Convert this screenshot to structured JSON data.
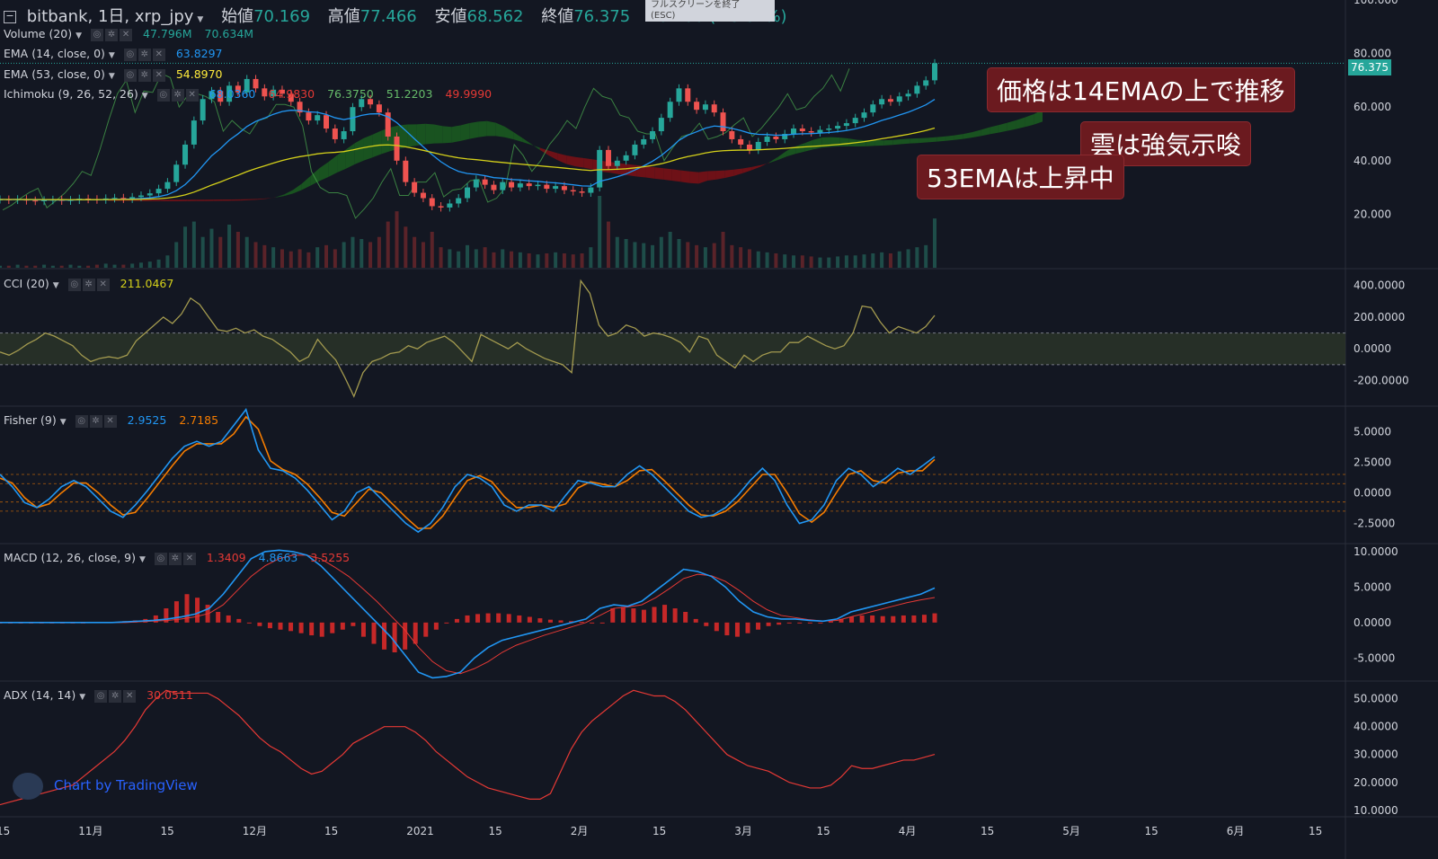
{
  "header": {
    "collapse_icon": "minus-square-icon",
    "symbol": "bitbank, 1日, xrp_jpy",
    "open_label": "始値",
    "open_value": "70.169",
    "high_label": "高値",
    "high_value": "77.466",
    "low_label": "安値",
    "low_value": "68.562",
    "close_label": "終値",
    "close_value": "76.375",
    "change": "+6.206 (+8.84%)"
  },
  "tooltip": {
    "line1": "フルスクリーンを終了",
    "line2": "(ESC)"
  },
  "indicators": {
    "volume": {
      "name": "Volume (20)",
      "v1": "47.796M",
      "v2": "70.634M"
    },
    "ema14": {
      "name": "EMA (14, close, 0)",
      "v": "63.8297"
    },
    "ema53": {
      "name": "EMA (53, close, 0)",
      "v": "54.8970"
    },
    "ichimoku": {
      "name": "Ichimoku (9, 26, 52, 26)",
      "v1": "68.0360",
      "v2": "64.9830",
      "v3": "76.3750",
      "v4": "51.2203",
      "v5": "49.9990"
    },
    "cci": {
      "name": "CCI (20)",
      "v": "211.0467"
    },
    "fisher": {
      "name": "Fisher (9)",
      "v1": "2.9525",
      "v2": "2.7185"
    },
    "macd": {
      "name": "MACD (12, 26, close, 9)",
      "v1": "1.3409",
      "v2": "4.8663",
      "v3": "3.5255"
    },
    "adx": {
      "name": "ADX (14, 14)",
      "v": "30.0511"
    }
  },
  "annotations": {
    "a1": "価格は14EMAの上で推移",
    "a2": "雲は強気示唆",
    "a3": "53EMAは上昇中"
  },
  "price_badge": "76.375",
  "branding": "Chart by TradingView",
  "colors": {
    "bg": "#131722",
    "up": "#26a69a",
    "down": "#ef5350",
    "ema14": "#2196f3",
    "ema53": "#d4d01a",
    "cci": "#a39a4f",
    "fisher": "#2196f3",
    "trigger": "#f57c00",
    "macd": "#2196f3",
    "signal": "#e53935",
    "hist": "#c62828",
    "adx": "#e53935",
    "annot": "#6b1a1f"
  },
  "chart_data": [
    {
      "type": "candlestick",
      "pane": "price",
      "title": "bitbank, 1日, xrp_jpy",
      "y_ticks": [
        "20.000",
        "40.000",
        "60.000",
        "80.000",
        "100.000"
      ],
      "ylim": [
        0,
        100
      ],
      "x_ticks": [
        "15",
        "11月",
        "15",
        "12月",
        "15",
        "2021",
        "15",
        "2月",
        "15",
        "3月",
        "15",
        "4月",
        "15",
        "5月",
        "15",
        "6月",
        "15"
      ],
      "close_series": [
        25.5,
        25.3,
        25.6,
        25.1,
        24.9,
        25.2,
        25.4,
        25.0,
        25.3,
        25.8,
        25.6,
        25.4,
        25.9,
        26.1,
        25.7,
        26.4,
        27.0,
        27.8,
        29.5,
        32.0,
        38.5,
        46.0,
        55.0,
        63.0,
        66.0,
        62.0,
        68.0,
        65.5,
        70.5,
        67.0,
        64.0,
        66.5,
        65.0,
        62.0,
        58.0,
        55.0,
        57.0,
        52.0,
        48.0,
        51.0,
        60.0,
        63.0,
        61.0,
        58.0,
        49.0,
        40.0,
        32.0,
        28.0,
        26.0,
        23.0,
        22.5,
        24.0,
        26.0,
        30.0,
        33.0,
        31.0,
        29.0,
        32.0,
        30.0,
        31.5,
        30.5,
        31.0,
        29.5,
        30.5,
        29.0,
        28.5,
        28.0,
        30.0,
        44.0,
        38.0,
        40.0,
        42.0,
        46.0,
        48.0,
        51.0,
        56.0,
        62.0,
        67.0,
        62.0,
        59.0,
        61.0,
        58.0,
        51.0,
        48.0,
        46.0,
        44.0,
        47.0,
        49.0,
        48.0,
        50.0,
        52.0,
        51.0,
        50.5,
        51.5,
        52.0,
        53.0,
        54.0,
        56.0,
        58.0,
        61.0,
        63.0,
        62.0,
        64.0,
        65.0,
        68.0,
        70.0,
        76.4
      ],
      "last_price": 76.375,
      "ema14_last": 63.8297,
      "ema53_last": 54.897
    },
    {
      "type": "bar",
      "pane": "volume",
      "title": "Volume (20)",
      "values_M": [
        2,
        2,
        3,
        2,
        2,
        3,
        2,
        2,
        3,
        2,
        2,
        3,
        4,
        3,
        3,
        4,
        5,
        6,
        8,
        12,
        25,
        40,
        45,
        30,
        38,
        30,
        42,
        35,
        30,
        25,
        22,
        20,
        18,
        16,
        18,
        15,
        20,
        22,
        18,
        25,
        30,
        28,
        25,
        30,
        45,
        55,
        40,
        30,
        25,
        35,
        20,
        18,
        16,
        22,
        18,
        20,
        15,
        18,
        16,
        15,
        14,
        13,
        14,
        15,
        14,
        13,
        14,
        20,
        70,
        45,
        30,
        28,
        25,
        24,
        22,
        30,
        35,
        28,
        25,
        22,
        20,
        24,
        35,
        22,
        20,
        18,
        16,
        15,
        14,
        13,
        12,
        12,
        11,
        10,
        10,
        11,
        12,
        12,
        13,
        14,
        15,
        14,
        16,
        18,
        20,
        22,
        48
      ]
    },
    {
      "type": "line",
      "pane": "cci",
      "title": "CCI (20)",
      "y_ticks": [
        "-200.0000",
        "0.0000",
        "200.0000",
        "400.0000"
      ],
      "ylim": [
        -350,
        500
      ],
      "bands": [
        -100,
        100
      ],
      "values": [
        -20,
        -40,
        -10,
        30,
        60,
        100,
        80,
        50,
        20,
        -40,
        -80,
        -60,
        -50,
        -60,
        -40,
        50,
        100,
        150,
        200,
        160,
        220,
        320,
        280,
        200,
        120,
        110,
        130,
        100,
        120,
        80,
        60,
        20,
        -20,
        -80,
        -50,
        60,
        -10,
        -70,
        -180,
        -300,
        -150,
        -80,
        -60,
        -30,
        -20,
        20,
        0,
        40,
        60,
        80,
        40,
        -20,
        -80,
        90,
        60,
        30,
        0,
        40,
        0,
        -30,
        -60,
        -80,
        -100,
        -150,
        430,
        350,
        150,
        80,
        100,
        150,
        130,
        80,
        100,
        90,
        70,
        40,
        -20,
        80,
        60,
        -40,
        -80,
        -120,
        -40,
        -80,
        -40,
        -20,
        -20,
        40,
        40,
        80,
        50,
        20,
        0,
        20,
        100,
        270,
        260,
        170,
        100,
        140,
        120,
        100,
        140,
        211
      ]
    },
    {
      "type": "line",
      "pane": "fisher",
      "title": "Fisher (9)",
      "y_ticks": [
        "-2.5000",
        "0.0000",
        "2.5000",
        "5.0000"
      ],
      "ylim": [
        -4,
        7
      ],
      "levels": [
        -1.5,
        -0.75,
        0.75,
        1.5
      ],
      "series": [
        {
          "name": "Fisher",
          "values": [
            1.5,
            0.5,
            -0.8,
            -1.2,
            -0.5,
            0.5,
            1.0,
            0.5,
            -0.5,
            -1.5,
            -2.0,
            -1.0,
            0.2,
            1.5,
            2.8,
            3.8,
            4.2,
            3.8,
            4.2,
            5.5,
            6.8,
            3.5,
            2.0,
            1.8,
            1.2,
            0.2,
            -1.0,
            -2.2,
            -1.5,
            0,
            0.5,
            -0.5,
            -1.5,
            -2.5,
            -3.2,
            -2.5,
            -1.2,
            0.5,
            1.5,
            1.2,
            0.5,
            -1.0,
            -1.5,
            -1.0,
            -1.0,
            -1.5,
            -0.2,
            1.0,
            0.8,
            0.5,
            0.5,
            1.5,
            2.2,
            1.5,
            0.5,
            -0.5,
            -1.5,
            -2.0,
            -1.8,
            -1.2,
            -0.2,
            1.0,
            2.0,
            1.0,
            -1.0,
            -2.5,
            -2.2,
            -1.0,
            1.0,
            2.0,
            1.5,
            0.5,
            1.2,
            2.0,
            1.5,
            2.2,
            2.95
          ]
        },
        {
          "name": "Trigger",
          "values": [
            1.2,
            0.8,
            -0.4,
            -1.2,
            -0.9,
            0.0,
            0.8,
            0.8,
            0.0,
            -1.0,
            -1.8,
            -1.6,
            -0.4,
            0.9,
            2.2,
            3.4,
            4.0,
            4.0,
            4.0,
            4.8,
            6.2,
            5.2,
            2.6,
            1.9,
            1.5,
            0.7,
            -0.4,
            -1.6,
            -1.9,
            -0.8,
            0.3,
            0.0,
            -1.0,
            -2.0,
            -2.9,
            -2.9,
            -1.9,
            -0.4,
            1.0,
            1.4,
            0.9,
            -0.3,
            -1.2,
            -1.2,
            -1.0,
            -1.2,
            -0.9,
            0.4,
            0.9,
            0.7,
            0.5,
            1.0,
            1.8,
            1.9,
            1.0,
            0.0,
            -1.0,
            -1.8,
            -1.9,
            -1.5,
            -0.7,
            0.4,
            1.5,
            1.5,
            0.0,
            -1.7,
            -2.4,
            -1.6,
            0.0,
            1.5,
            1.8,
            1.0,
            0.8,
            1.6,
            1.8,
            1.8,
            2.72
          ]
        }
      ]
    },
    {
      "type": "line",
      "pane": "macd",
      "title": "MACD (12, 26, close, 9)",
      "y_ticks": [
        "-5.0000",
        "0.0000",
        "5.0000",
        "10.0000"
      ],
      "ylim": [
        -8,
        11
      ],
      "series": [
        {
          "name": "Histogram",
          "values": [
            0,
            0,
            0,
            0,
            0,
            0,
            0,
            0,
            0,
            0.1,
            0.1,
            0.1,
            0.2,
            0.3,
            0.5,
            1.0,
            2.0,
            3.0,
            4.0,
            3.5,
            2.5,
            1.5,
            1.0,
            0.5,
            0,
            -0.5,
            -0.8,
            -1.0,
            -1.2,
            -1.5,
            -1.8,
            -2.0,
            -1.5,
            -1.0,
            -0.5,
            -2.0,
            -3.0,
            -3.8,
            -4.2,
            -3.8,
            -3.0,
            -2.0,
            -1.0,
            0,
            0.5,
            1.0,
            1.2,
            1.3,
            1.3,
            1.2,
            1.0,
            0.8,
            0.6,
            0.4,
            0.3,
            0.2,
            0.1,
            0,
            0,
            2.0,
            2.2,
            2.0,
            1.8,
            2.2,
            2.5,
            2.0,
            1.5,
            0.5,
            -0.5,
            -1.2,
            -1.8,
            -2.0,
            -1.5,
            -1.0,
            -0.5,
            -0.3,
            -0.1,
            0,
            0,
            0,
            0.2,
            0.5,
            0.8,
            1.0,
            1.0,
            0.9,
            0.9,
            1.0,
            1.0,
            1.1,
            1.3
          ]
        },
        {
          "name": "MACD",
          "values": [
            0,
            0,
            0,
            0,
            0,
            0,
            0,
            0,
            0,
            0.1,
            0.2,
            0.3,
            0.5,
            0.8,
            1.2,
            2.0,
            4.0,
            6.5,
            9.0,
            10.0,
            10.2,
            10.0,
            9.5,
            8.0,
            6.0,
            4.0,
            2.0,
            0,
            -2.0,
            -4.5,
            -7.0,
            -7.8,
            -7.6,
            -7.0,
            -5.0,
            -3.5,
            -2.5,
            -2.0,
            -1.5,
            -1.0,
            -0.5,
            0.0,
            0.5,
            2.0,
            2.5,
            2.3,
            3.0,
            4.5,
            6.0,
            7.5,
            7.2,
            6.5,
            5.0,
            3.0,
            1.5,
            0.8,
            0.5,
            0.5,
            0.3,
            0.2,
            0.5,
            1.5,
            2.0,
            2.5,
            3.0,
            3.5,
            4.0,
            4.87
          ]
        },
        {
          "name": "Signal",
          "values": [
            0,
            0,
            0,
            0,
            0,
            0,
            0,
            0,
            0,
            0,
            0.1,
            0.2,
            0.3,
            0.5,
            0.8,
            1.3,
            2.5,
            4.5,
            6.5,
            8.0,
            9.0,
            9.5,
            9.5,
            9.0,
            7.8,
            6.5,
            4.8,
            3.0,
            1.0,
            -1.0,
            -3.5,
            -5.5,
            -6.8,
            -7.2,
            -6.5,
            -5.5,
            -4.2,
            -3.2,
            -2.5,
            -1.8,
            -1.2,
            -0.6,
            0.0,
            1.0,
            2.0,
            2.2,
            2.5,
            3.5,
            4.8,
            6.2,
            6.8,
            6.6,
            5.8,
            4.5,
            3.0,
            1.8,
            1.0,
            0.7,
            0.4,
            0.2,
            0.3,
            0.8,
            1.3,
            1.8,
            2.3,
            2.8,
            3.2,
            3.53
          ]
        }
      ]
    },
    {
      "type": "line",
      "pane": "adx",
      "title": "ADX (14, 14)",
      "y_ticks": [
        "10.0000",
        "20.0000",
        "30.0000",
        "40.0000",
        "50.0000"
      ],
      "ylim": [
        8,
        56
      ],
      "values": [
        12,
        13,
        14,
        15,
        16,
        17,
        18,
        19,
        22,
        25,
        28,
        31,
        35,
        40,
        46,
        50,
        53,
        52,
        52,
        52,
        52,
        50,
        47,
        44,
        40,
        36,
        33,
        31,
        28,
        25,
        23,
        24,
        27,
        30,
        34,
        36,
        38,
        40,
        40,
        40,
        38,
        35,
        31,
        28,
        25,
        22,
        20,
        18,
        17,
        16,
        15,
        14,
        14,
        16,
        24,
        32,
        38,
        42,
        45,
        48,
        51,
        53,
        52,
        51,
        51,
        49,
        46,
        42,
        38,
        34,
        30,
        28,
        26,
        25,
        24,
        22,
        20,
        19,
        18,
        18,
        19,
        22,
        26,
        25,
        25,
        26,
        27,
        28,
        28,
        29,
        30.05
      ]
    }
  ]
}
